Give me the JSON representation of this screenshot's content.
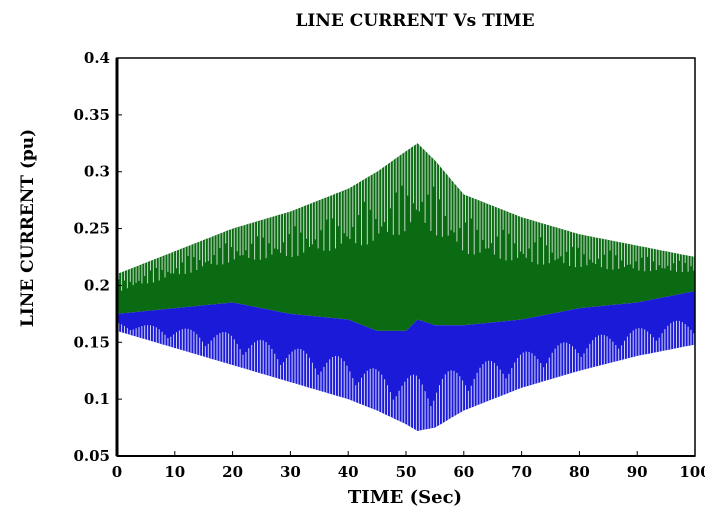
{
  "chart_data": {
    "type": "line",
    "title": "LINE CURRENT Vs TIME",
    "xlabel": "TIME (Sec)",
    "ylabel": "LINE CURRENT (pu)",
    "xlim": [
      0,
      100
    ],
    "ylim": [
      0.05,
      0.4
    ],
    "xticks": [
      0,
      10,
      20,
      30,
      40,
      50,
      60,
      70,
      80,
      90,
      100
    ],
    "yticks": [
      0.05,
      0.1,
      0.15,
      0.2,
      0.25,
      0.3,
      0.35,
      0.4
    ],
    "grid": false,
    "colors": {
      "upper": "#0a6b12",
      "lower": "#1a1ad8",
      "stripe": "#ffffff"
    },
    "series": [
      {
        "x": [
          0,
          10,
          20,
          30,
          40,
          45,
          50,
          52,
          55,
          60,
          70,
          80,
          90,
          100
        ],
        "values": [
          0.21,
          0.23,
          0.25,
          0.265,
          0.285,
          0.3,
          0.318,
          0.325,
          0.31,
          0.28,
          0.26,
          0.245,
          0.235,
          0.225
        ]
      },
      {
        "x": [
          0,
          10,
          20,
          30,
          40,
          45,
          50,
          52,
          55,
          60,
          70,
          80,
          90,
          100
        ],
        "values": [
          0.175,
          0.18,
          0.185,
          0.175,
          0.17,
          0.16,
          0.16,
          0.17,
          0.165,
          0.165,
          0.17,
          0.18,
          0.185,
          0.195
        ]
      },
      {
        "x": [
          0,
          10,
          20,
          30,
          40,
          45,
          50,
          52,
          55,
          60,
          70,
          80,
          90,
          100
        ],
        "values": [
          0.16,
          0.145,
          0.13,
          0.115,
          0.1,
          0.09,
          0.078,
          0.072,
          0.075,
          0.09,
          0.11,
          0.125,
          0.138,
          0.148
        ]
      }
    ]
  }
}
